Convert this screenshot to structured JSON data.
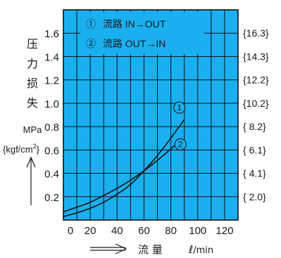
{
  "chart_data": {
    "type": "line",
    "plot_bg": "#1ab0f0",
    "grid_color": "#111111",
    "line_color": "#111111",
    "xlim": [
      0,
      130
    ],
    "ylim": [
      0,
      1.8
    ],
    "x_ticks": [
      {
        "label": "0",
        "value": 0
      },
      {
        "label": "20",
        "value": 20
      },
      {
        "label": "40",
        "value": 40
      },
      {
        "label": "60",
        "value": 60
      },
      {
        "label": "80",
        "value": 80
      },
      {
        "label": "100",
        "value": 100
      },
      {
        "label": "120",
        "value": 120
      }
    ],
    "y_ticks": [
      {
        "label": "0.2",
        "value": 0.2
      },
      {
        "label": "0.4",
        "value": 0.4
      },
      {
        "label": "0.6",
        "value": 0.6
      },
      {
        "label": "0.8",
        "value": 0.8
      },
      {
        "label": "1.0",
        "value": 1.0
      },
      {
        "label": "1.2",
        "value": 1.2
      },
      {
        "label": "1.4",
        "value": 1.4
      },
      {
        "label": "1.6",
        "value": 1.6
      }
    ],
    "y2_ticks": [
      {
        "label": "{ 2.0}",
        "value": 0.2
      },
      {
        "label": "{ 4.1}",
        "value": 0.4
      },
      {
        "label": "{ 6.1}",
        "value": 0.6
      },
      {
        "label": "{ 8.2}",
        "value": 0.8
      },
      {
        "label": "{10.2}",
        "value": 1.0
      },
      {
        "label": "{12.2}",
        "value": 1.2
      },
      {
        "label": "{14.3}",
        "value": 1.4
      },
      {
        "label": "{16.3}",
        "value": 1.6
      }
    ],
    "ylabel_chars": [
      "压",
      "力",
      "损",
      "失"
    ],
    "ylabel_unit": "MPa",
    "ylabel_unit2_prefix": "{kgf/cm",
    "ylabel_unit2_sup": "2",
    "ylabel_unit2_suffix": "}",
    "xlabel_word": "流 量",
    "xlabel_unit_l": "ℓ",
    "xlabel_unit_rest": "/min",
    "legend": [
      {
        "marker": "①",
        "text": "流路 IN→OUT"
      },
      {
        "marker": "②",
        "text": "流路 OUT→IN"
      }
    ],
    "series": [
      {
        "name": "① 流路 IN→OUT",
        "marker": "①",
        "x": [
          0,
          10,
          20,
          30,
          40,
          50,
          60,
          70,
          80,
          90
        ],
        "y": [
          0.03,
          0.06,
          0.1,
          0.15,
          0.22,
          0.3,
          0.42,
          0.55,
          0.7,
          0.86
        ]
      },
      {
        "name": "② 流路 OUT→IN",
        "marker": "②",
        "x": [
          0,
          10,
          20,
          30,
          40,
          50,
          60,
          70,
          80,
          85
        ],
        "y": [
          0.07,
          0.11,
          0.15,
          0.21,
          0.27,
          0.34,
          0.42,
          0.51,
          0.61,
          0.66
        ]
      }
    ]
  }
}
